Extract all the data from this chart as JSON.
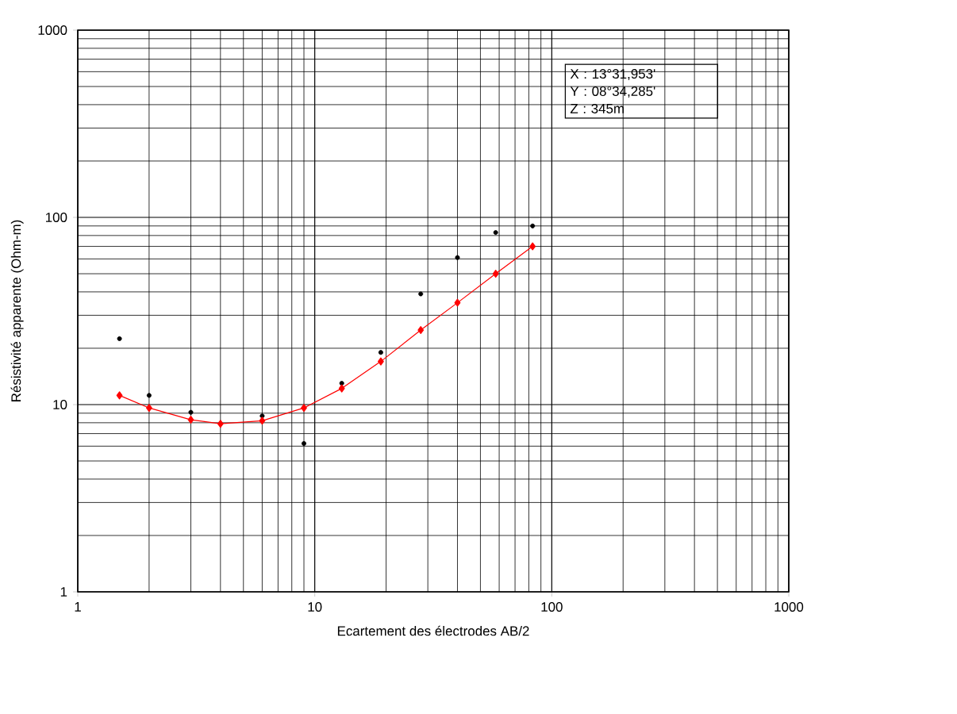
{
  "chart_data": {
    "type": "scatter",
    "xlabel": "Ecartement des électrodes AB/2",
    "ylabel": "Résistivité apparente (Ohm-m)",
    "log": "xy",
    "grid": true,
    "xlim": [
      1,
      1000
    ],
    "ylim": [
      1,
      1000
    ],
    "xticks": [
      1,
      10,
      100,
      1000
    ],
    "yticks": [
      1,
      10,
      100,
      1000
    ],
    "annotations": [
      "X : 13°31,953'",
      "Y : 08°34,285'",
      "Z :  345m"
    ],
    "series": [
      {
        "marker": "circle",
        "color": "#000000",
        "x": [
          1.5,
          2,
          3,
          6,
          9,
          13,
          19,
          28,
          40,
          58,
          83
        ],
        "values": [
          22.5,
          11.2,
          9.1,
          8.7,
          6.2,
          13,
          19,
          39,
          61,
          83,
          90
        ]
      },
      {
        "type": "line",
        "marker": "diamond",
        "color": "#ff0000",
        "x": [
          1.5,
          2,
          3,
          4,
          6,
          9,
          13,
          19,
          28,
          40,
          58,
          83
        ],
        "values": [
          11.2,
          9.6,
          8.3,
          7.9,
          8.2,
          9.6,
          12.2,
          17,
          25,
          35,
          50,
          70
        ]
      }
    ]
  }
}
